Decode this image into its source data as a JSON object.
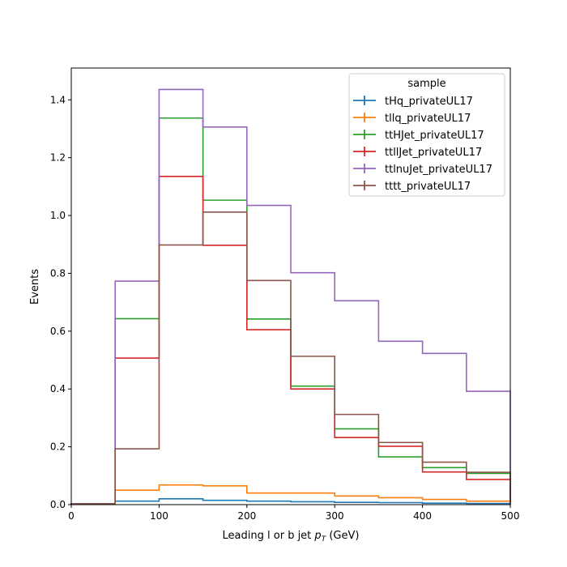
{
  "chart_data": {
    "type": "line",
    "style": "step-histogram",
    "xlabel": "Leading l or b jet",
    "xlabel_var": "p",
    "xlabel_sub": "T",
    "xlabel_unit": "(GeV)",
    "ylabel": "Events",
    "xlim": [
      0,
      500
    ],
    "ylim": [
      0,
      1.51
    ],
    "xticks": [
      0,
      100,
      200,
      300,
      400,
      500
    ],
    "yticks": [
      0.0,
      0.2,
      0.4,
      0.6,
      0.8,
      1.0,
      1.2,
      1.4
    ],
    "bin_edges": [
      0,
      50,
      100,
      150,
      200,
      250,
      300,
      350,
      400,
      450,
      500
    ],
    "legend_title": "sample",
    "legend_position": "top-right",
    "series": [
      {
        "name": "tHq_privateUL17",
        "color": "#1f77b4",
        "values": [
          0.003,
          0.012,
          0.02,
          0.015,
          0.012,
          0.01,
          0.008,
          0.007,
          0.005,
          0.004
        ]
      },
      {
        "name": "tllq_privateUL17",
        "color": "#ff7f0e",
        "values": [
          0.003,
          0.05,
          0.068,
          0.065,
          0.04,
          0.04,
          0.03,
          0.024,
          0.018,
          0.012
        ]
      },
      {
        "name": "ttHJet_privateUL17",
        "color": "#2ca02c",
        "values": [
          0.003,
          0.643,
          1.337,
          1.053,
          0.642,
          0.41,
          0.262,
          0.165,
          0.128,
          0.108
        ]
      },
      {
        "name": "ttllJet_privateUL17",
        "color": "#d62728",
        "values": [
          0.003,
          0.507,
          1.135,
          0.897,
          0.605,
          0.4,
          0.232,
          0.202,
          0.113,
          0.087
        ]
      },
      {
        "name": "ttlnuJet_privateUL17",
        "color": "#9467bd",
        "values": [
          0.003,
          0.773,
          1.436,
          1.306,
          1.035,
          0.802,
          0.705,
          0.565,
          0.523,
          0.392
        ]
      },
      {
        "name": "tttt_privateUL17",
        "color": "#8c564b",
        "values": [
          0.003,
          0.193,
          0.898,
          1.012,
          0.775,
          0.513,
          0.312,
          0.215,
          0.147,
          0.112
        ]
      }
    ]
  }
}
